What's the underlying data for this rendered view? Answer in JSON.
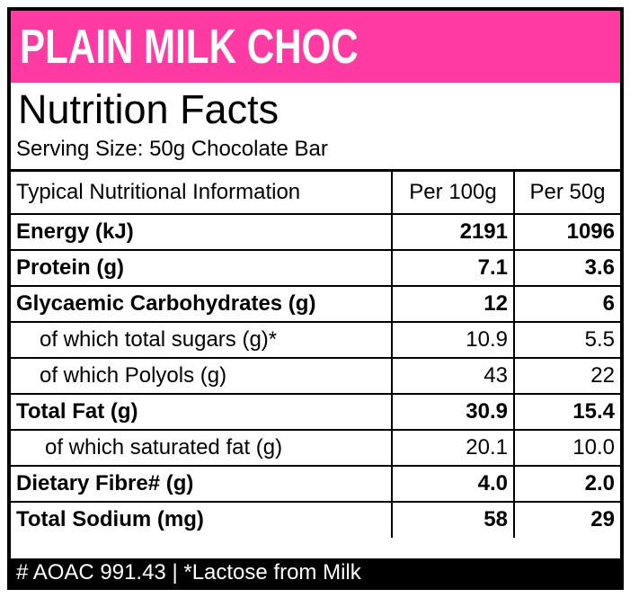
{
  "banner": {
    "title": "PLAIN MILK CHOC",
    "color": "#ff3aa3"
  },
  "facts": {
    "title": "Nutrition Facts",
    "serving": "Serving Size: 50g Chocolate Bar"
  },
  "table": {
    "headers": [
      "Typical Nutritional Information",
      "Per 100g",
      "Per 50g"
    ],
    "rows": [
      {
        "label": "Energy (kJ)",
        "per100": "2191",
        "per50": "1096",
        "bold": true
      },
      {
        "label": "Protein (g)",
        "per100": "7.1",
        "per50": "3.6",
        "bold": true
      },
      {
        "label": "Glycaemic Carbohydrates (g)",
        "per100": "12",
        "per50": "6",
        "bold": true
      },
      {
        "label": "of which total sugars (g)*",
        "per100": "10.9",
        "per50": "5.5",
        "bold": false
      },
      {
        "label": "of which Polyols (g)",
        "per100": "43",
        "per50": "22",
        "bold": false
      },
      {
        "label": "Total Fat (g)",
        "per100": "30.9",
        "per50": "15.4",
        "bold": true
      },
      {
        "label": "of which saturated fat (g)",
        "per100": "20.1",
        "per50": "10.0",
        "bold": false
      },
      {
        "label": "Dietary Fibre# (g)",
        "per100": "4.0",
        "per50": "2.0",
        "bold": true
      },
      {
        "label": "Total Sodium (mg)",
        "per100": "58",
        "per50": "29",
        "bold": true
      }
    ]
  },
  "footer": {
    "text": "# AOAC 991.43 | *Lactose from Milk"
  }
}
